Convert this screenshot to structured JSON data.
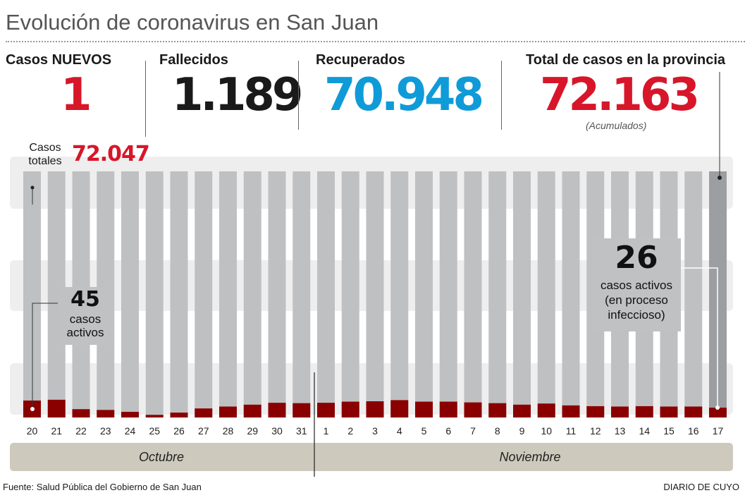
{
  "title": "Evolución de coronavirus en San Juan",
  "stats": {
    "new_label": "Casos NUEVOS",
    "new_value": "1",
    "deaths_label": "Fallecidos",
    "deaths_value": "1.189",
    "recovered_label": "Recuperados",
    "recovered_value": "70.948",
    "total_label": "Total de casos en la provincia",
    "total_value": "72.163",
    "total_note": "(Acumulados)"
  },
  "chart_data": {
    "type": "bar",
    "categories": [
      "20",
      "21",
      "22",
      "23",
      "24",
      "25",
      "26",
      "27",
      "28",
      "29",
      "30",
      "31",
      "1",
      "2",
      "3",
      "4",
      "5",
      "6",
      "7",
      "8",
      "9",
      "10",
      "11",
      "12",
      "13",
      "14",
      "15",
      "16",
      "17"
    ],
    "months": [
      "Octubre",
      "Noviembre"
    ],
    "values": [
      45,
      47,
      22,
      20,
      15,
      7,
      13,
      24,
      29,
      34,
      39,
      38,
      39,
      42,
      43,
      46,
      42,
      42,
      40,
      38,
      34,
      37,
      32,
      30,
      29,
      30,
      29,
      29,
      26
    ],
    "start_total_label": "Casos totales",
    "start_total_value": "72.047",
    "start_annotation": {
      "value": "45",
      "text": "casos activos"
    },
    "end_annotation": {
      "value": "26",
      "text1": "casos activos",
      "text2": "(en proceso",
      "text3": "infeccioso)"
    }
  },
  "colors": {
    "red": "#d7162a",
    "blue": "#0f9bd8",
    "dark": "#1a1a1a",
    "bar": "#bfc0c2",
    "bar_last": "#9d9ea1",
    "active": "#8a0000",
    "band": "#eeeeef",
    "month": "#cdcabd"
  },
  "footer": {
    "source": "Fuente: Salud Pública del Gobierno de San Juan",
    "brand": "DIARIO DE CUYO"
  }
}
